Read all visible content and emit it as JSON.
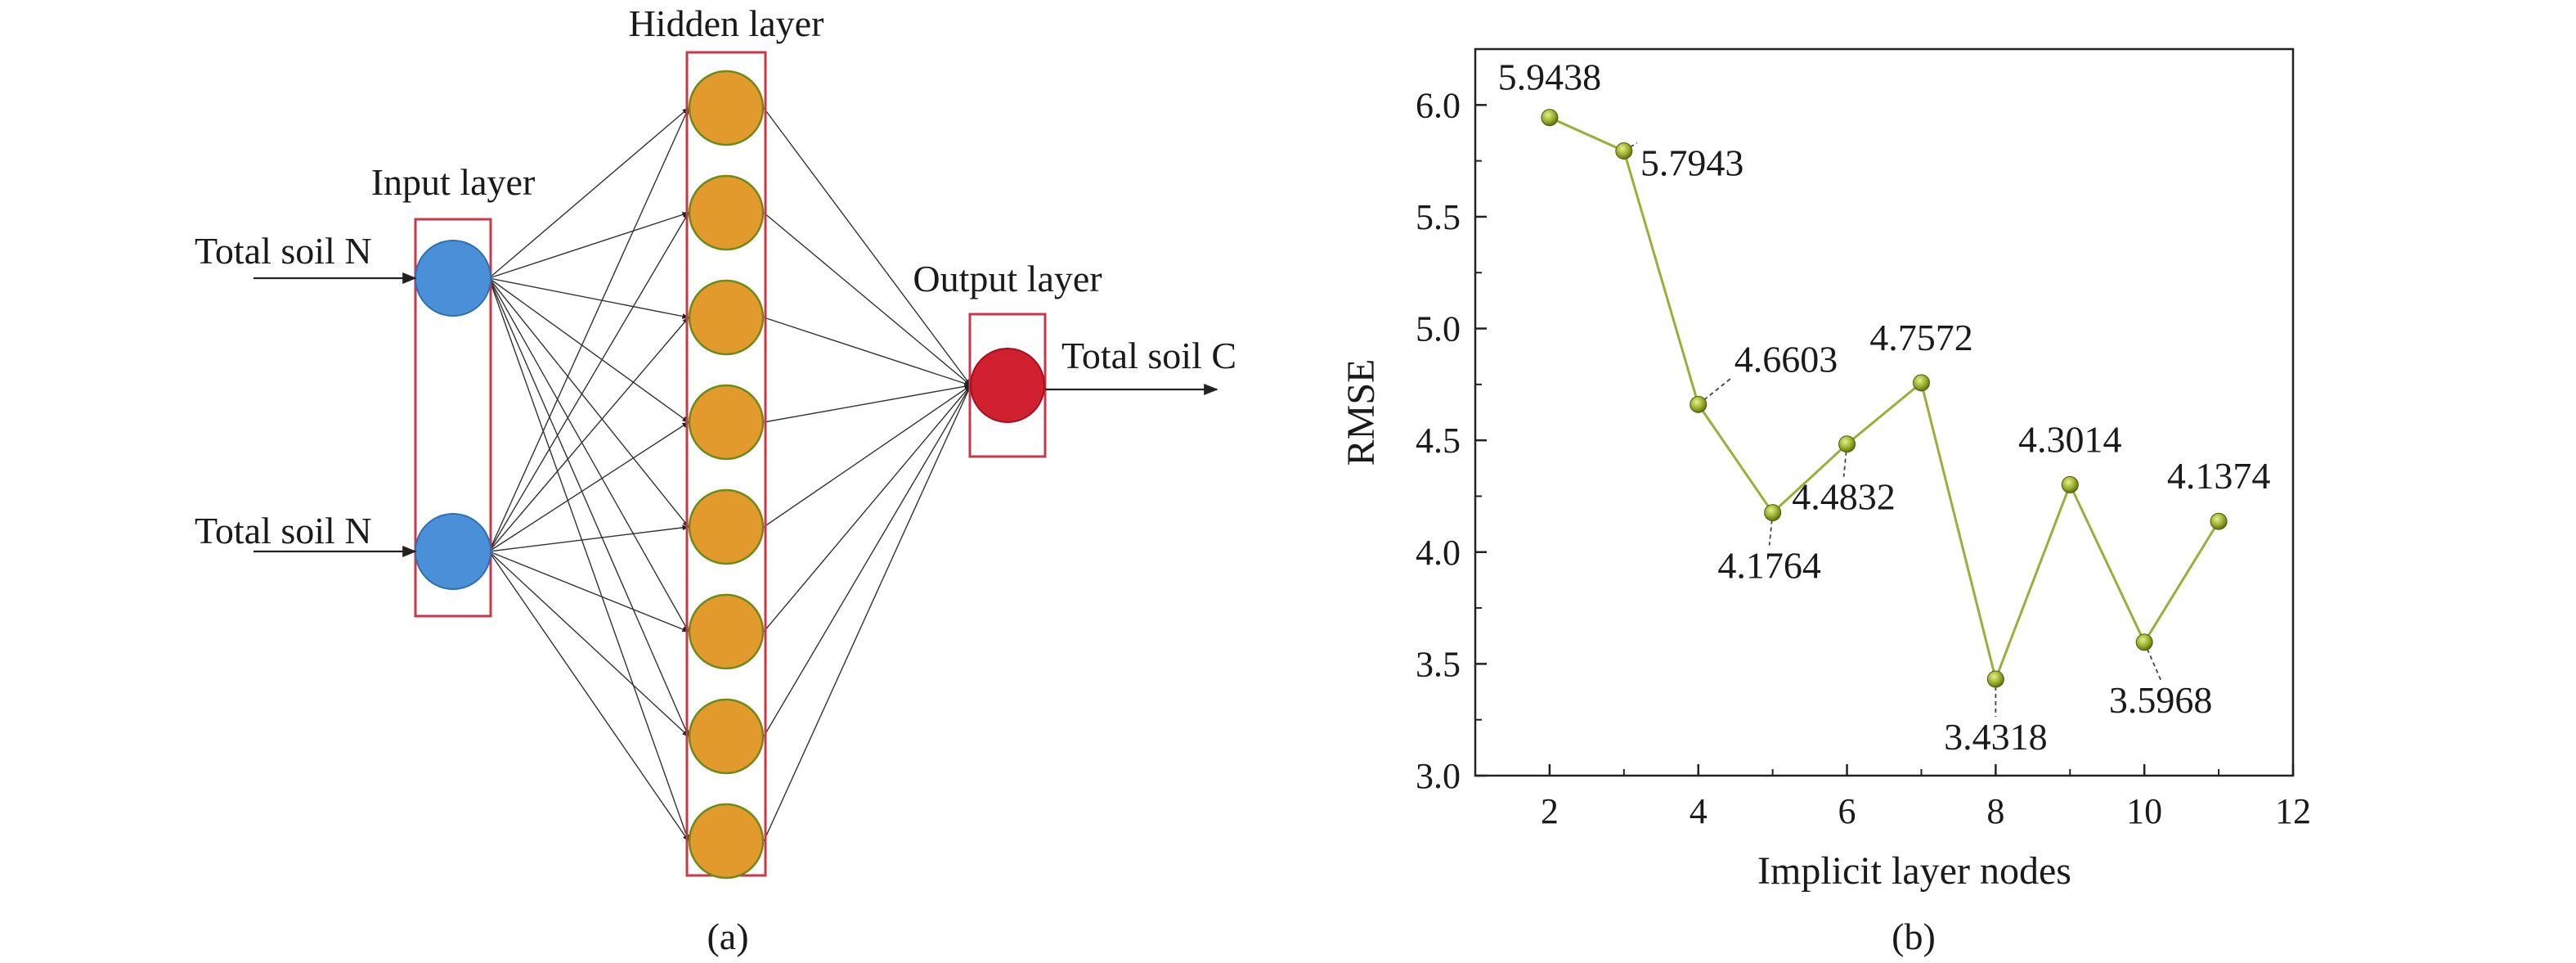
{
  "panel_a": {
    "caption": "(a)",
    "input_label": "Input layer",
    "hidden_label": "Hidden layer",
    "output_label": "Output layer",
    "input_nodes": [
      "Total soil N",
      "Total soil N"
    ],
    "output_text": "Total soil C",
    "hidden_count": 8,
    "colors": {
      "input": "#4a90d9",
      "hidden": "#e39a2c",
      "output": "#d1202f",
      "box": "#c8384b"
    }
  },
  "panel_b": {
    "caption": "(b)"
  },
  "chart_data": {
    "type": "line",
    "xlabel": "Implicit layer nodes",
    "ylabel": "RMSE",
    "xlim": [
      1,
      12
    ],
    "ylim": [
      3.0,
      6.25
    ],
    "xticks": [
      2,
      4,
      6,
      8,
      10,
      12
    ],
    "yticks": [
      3.0,
      3.5,
      4.0,
      4.5,
      5.0,
      5.5,
      6.0
    ],
    "x": [
      2,
      3,
      4,
      5,
      6,
      7,
      8,
      9,
      10,
      11
    ],
    "y": [
      5.9438,
      5.7943,
      4.6603,
      4.1764,
      4.4832,
      4.7572,
      3.4318,
      4.3014,
      3.5968,
      4.1374
    ],
    "labels": [
      "5.9438",
      "5.7943",
      "4.6603",
      "4.1764",
      "4.4832",
      "4.7572",
      "3.4318",
      "4.3014",
      "3.5968",
      "4.1374"
    ],
    "line_color": "#9aae3a",
    "marker_color": "#8ea12a"
  }
}
